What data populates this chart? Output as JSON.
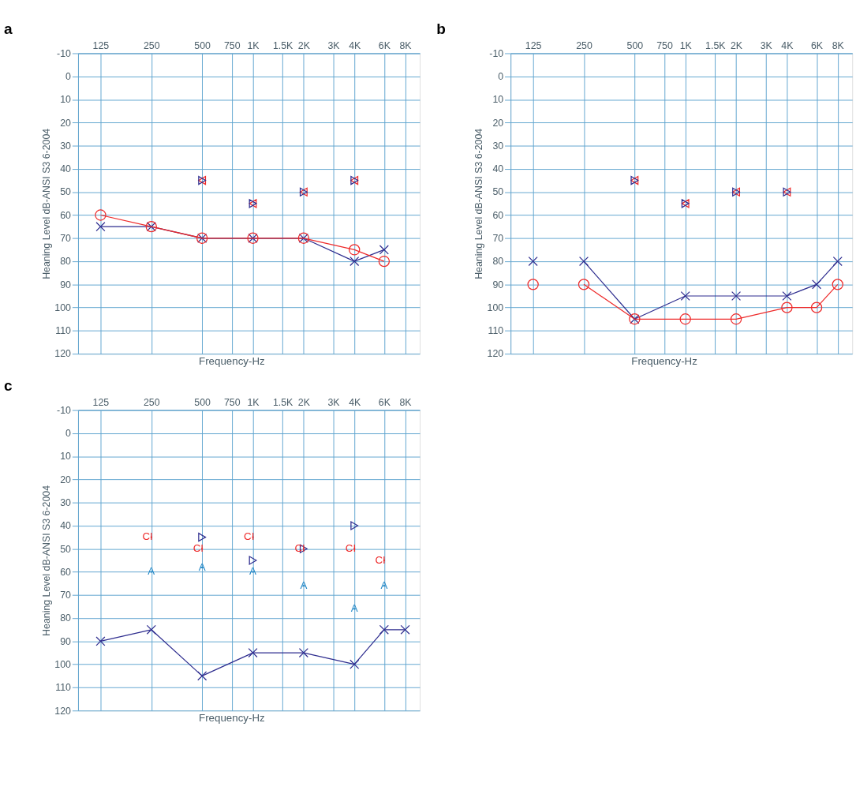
{
  "chart_data": [
    {
      "type": "line",
      "title": "a",
      "xlabel": "Frequency-Hz",
      "ylabel": "Heaning Level dB-ANSI S3 6-2004",
      "log": "x",
      "xlim": [
        92,
        9760
      ],
      "ylim": [
        120,
        -10
      ],
      "xticks": [
        125,
        250,
        500,
        750,
        {
          "value": 1000,
          "label": "1K"
        },
        {
          "value": 1500,
          "label": "1.5K"
        },
        {
          "value": 2000,
          "label": "2K"
        },
        {
          "value": 3000,
          "label": "3K"
        },
        {
          "value": 4000,
          "label": "4K"
        },
        {
          "value": 6000,
          "label": "6K"
        },
        {
          "value": 8000,
          "label": "8K"
        }
      ],
      "yticks": [
        -10,
        0,
        10,
        20,
        30,
        40,
        50,
        60,
        70,
        80,
        90,
        100,
        110,
        120
      ],
      "grid": true,
      "series": [
        {
          "color": "#2e2d8f",
          "marker": "cross",
          "x": [
            125,
            250,
            500,
            1000,
            2000,
            4000,
            6000
          ],
          "values": [
            65,
            65,
            70,
            70,
            70,
            80,
            75
          ]
        },
        {
          "color": "#ee2a2a",
          "marker": "circle",
          "x": [
            125,
            250,
            500,
            1000,
            2000,
            4000,
            6000
          ],
          "values": [
            60,
            65,
            70,
            70,
            70,
            75,
            80
          ]
        },
        {
          "type": "scatter",
          "color": "#ee2a2a",
          "marker": "triangle",
          "x": [
            500,
            1000,
            2000,
            4000
          ],
          "values": [
            45,
            55,
            50,
            45
          ]
        },
        {
          "type": "scatter",
          "color": "#2e2d8f",
          "marker": "triangle",
          "x": [
            500,
            1000,
            2000,
            4000
          ],
          "values": [
            45,
            55,
            50,
            45
          ]
        }
      ]
    },
    {
      "type": "line",
      "title": "b",
      "xlabel": "Frequency-Hz",
      "ylabel": "Heaning Level dB-ANSI S3 6-2004",
      "log": "x",
      "xlim": [
        92,
        9760
      ],
      "ylim": [
        120,
        -10
      ],
      "xticks": [
        125,
        250,
        500,
        750,
        {
          "value": 1000,
          "label": "1K"
        },
        {
          "value": 1500,
          "label": "1.5K"
        },
        {
          "value": 2000,
          "label": "2K"
        },
        {
          "value": 3000,
          "label": "3K"
        },
        {
          "value": 4000,
          "label": "4K"
        },
        {
          "value": 6000,
          "label": "6K"
        },
        {
          "value": 8000,
          "label": "8K"
        }
      ],
      "yticks": [
        -10,
        0,
        10,
        20,
        30,
        40,
        50,
        60,
        70,
        80,
        90,
        100,
        110,
        120
      ],
      "grid": true,
      "series": [
        {
          "type": "scatter",
          "color": "#2e2d8f",
          "marker": "cross",
          "x": [
            125
          ],
          "values": [
            80
          ]
        },
        {
          "type": "scatter",
          "color": "#ee2a2a",
          "marker": "circle",
          "x": [
            125
          ],
          "values": [
            90
          ]
        },
        {
          "color": "#2e2d8f",
          "marker": "cross",
          "x": [
            250,
            500,
            1000,
            2000,
            4000,
            6000,
            8000
          ],
          "values": [
            80,
            105,
            95,
            95,
            95,
            90,
            80
          ]
        },
        {
          "color": "#ee2a2a",
          "marker": "circle",
          "x": [
            250,
            500,
            1000,
            2000,
            4000,
            6000,
            8000
          ],
          "values": [
            90,
            105,
            105,
            105,
            100,
            100,
            90
          ]
        },
        {
          "type": "scatter",
          "color": "#ee2a2a",
          "marker": "triangle",
          "x": [
            500,
            1000,
            2000,
            4000
          ],
          "values": [
            45,
            55,
            50,
            50
          ]
        },
        {
          "type": "scatter",
          "color": "#2e2d8f",
          "marker": "triangle",
          "x": [
            500,
            1000,
            2000,
            4000
          ],
          "values": [
            45,
            55,
            50,
            50
          ]
        }
      ]
    },
    {
      "type": "line",
      "title": "c",
      "xlabel": "Frequency-Hz",
      "ylabel": "Heaning Level dB-ANSI S3 6-2004",
      "log": "x",
      "xlim": [
        92,
        9760
      ],
      "ylim": [
        120,
        -10
      ],
      "xticks": [
        125,
        250,
        500,
        750,
        {
          "value": 1000,
          "label": "1K"
        },
        {
          "value": 1500,
          "label": "1.5K"
        },
        {
          "value": 2000,
          "label": "2K"
        },
        {
          "value": 3000,
          "label": "3K"
        },
        {
          "value": 4000,
          "label": "4K"
        },
        {
          "value": 6000,
          "label": "6K"
        },
        {
          "value": 8000,
          "label": "8K"
        }
      ],
      "yticks": [
        -10,
        0,
        10,
        20,
        30,
        40,
        50,
        60,
        70,
        80,
        90,
        100,
        110,
        120
      ],
      "grid": true,
      "series": [
        {
          "color": "#2e2d8f",
          "marker": "cross",
          "x": [
            125,
            250,
            500,
            1000,
            2000,
            4000,
            6000,
            8000
          ],
          "values": [
            90,
            85,
            105,
            95,
            95,
            100,
            85,
            85
          ]
        },
        {
          "type": "scatter",
          "color": "#2e2d8f",
          "marker": "triangle",
          "x": [
            500,
            1000,
            2000,
            4000
          ],
          "values": [
            45,
            55,
            50,
            40
          ]
        },
        {
          "type": "scatter",
          "color": "#ee2a2a",
          "marker": "square",
          "x": [
            250,
            500,
            1000,
            2000,
            4000,
            6000
          ],
          "values": [
            45,
            50,
            45,
            50,
            50,
            55
          ],
          "value_labels": [
            "CI",
            "CI",
            "CI",
            "CI",
            "CI",
            "CI"
          ]
        },
        {
          "type": "scatter",
          "color": "#1f86c6",
          "marker": "square",
          "x": [
            250,
            500,
            1000,
            2000,
            4000,
            6000
          ],
          "values": [
            60,
            58,
            60,
            66,
            76,
            66
          ],
          "value_labels": [
            "A",
            "A",
            "A",
            "A",
            "A",
            "A"
          ]
        }
      ]
    }
  ]
}
